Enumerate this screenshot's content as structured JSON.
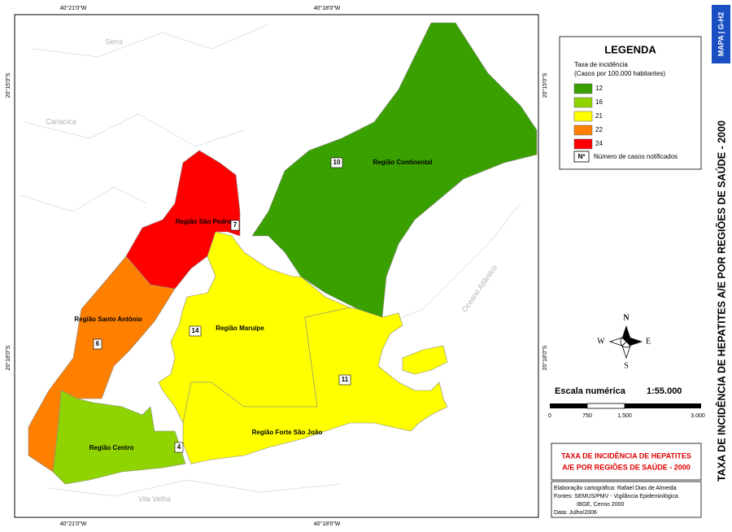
{
  "sidebar": {
    "code": "MAPA | G-H2",
    "title": "TAXA DE INCIDÊNCIA DE HEPATITES A/E POR REGIÕES DE SAÚDE - 2000"
  },
  "map": {
    "coordinates": {
      "top": [
        "40°21'0\"W",
        "40°18'0\"W"
      ],
      "bottom": [
        "40°21'0\"W",
        "40°18'0\"W"
      ],
      "left": [
        "20°15'0\"S",
        "20°18'0\"S"
      ],
      "right": [
        "20°15'0\"S",
        "20°18'0\"S"
      ]
    },
    "places": [
      "Serra",
      "Cariacica",
      "Vila Velha",
      "Oceano Atlântico"
    ],
    "regions": [
      {
        "name": "Região Continental",
        "cases": 10,
        "color": "#3aa000"
      },
      {
        "name": "Região São Pedro",
        "cases": 7,
        "color": "#ff0000"
      },
      {
        "name": "Região Santo Antônio",
        "cases": 6,
        "color": "#ff8000"
      },
      {
        "name": "Região Maruípe",
        "cases": 14,
        "color": "#ffff00"
      },
      {
        "name": "Região Forte São João",
        "cases": 11,
        "color": "#ffff00"
      },
      {
        "name": "Região Centro",
        "cases": 4,
        "color": "#8fd400"
      }
    ]
  },
  "legend": {
    "title": "LEGENDA",
    "subtitle": [
      "Taxa de incidência",
      "(Casos por 100.000 habitantes)"
    ],
    "classes": [
      {
        "label": 12,
        "color": "#3aa000"
      },
      {
        "label": 16,
        "color": "#8fd400"
      },
      {
        "label": 21,
        "color": "#ffff00"
      },
      {
        "label": 22,
        "color": "#ff8000"
      },
      {
        "label": 24,
        "color": "#ff0000"
      }
    ],
    "cases_symbol": "Nº",
    "cases_label": "Número de casos notificados"
  },
  "compass": {
    "n": "N",
    "s": "S",
    "e": "E",
    "w": "W"
  },
  "scale": {
    "label": "Escala numérica",
    "ratio": "1:55.000",
    "ticks": [
      "0",
      "750",
      "1.500",
      "3.000"
    ]
  },
  "title_box": [
    "TAXA DE INCIDÊNCIA DE HEPATITES",
    "A/E POR REGIÕES DE SAÚDE - 2000"
  ],
  "credits": [
    "Elaboração cartográfica: Rafael Dias de Almeida",
    "Fontes: SEMUS/PMV - Vigilância Epidemiológica",
    "IBGE, Censo 2000",
    "Data: Julho/2006"
  ]
}
